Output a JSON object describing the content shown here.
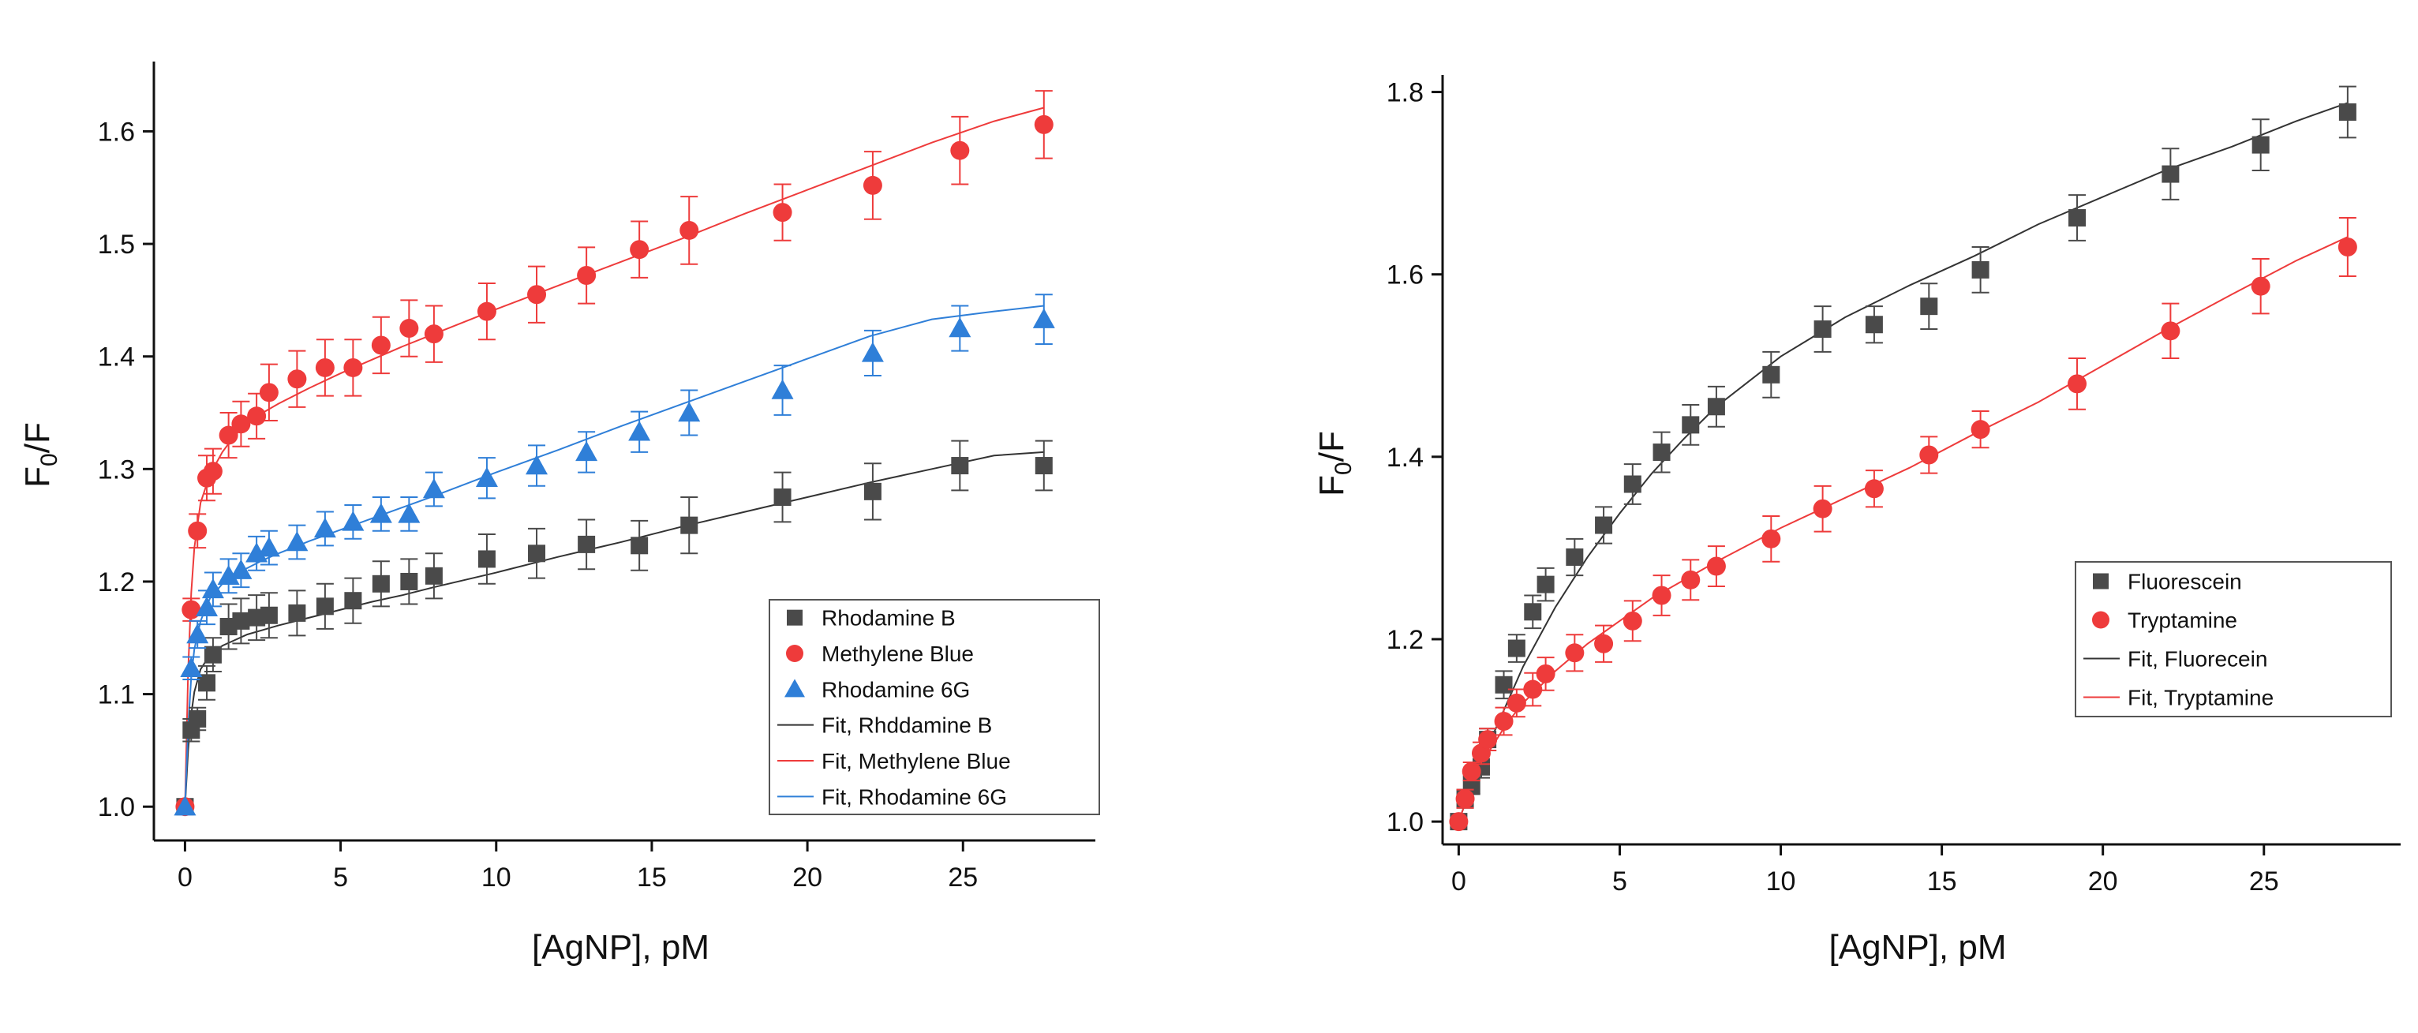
{
  "chart_data": [
    {
      "type": "scatter",
      "xlabel": "[AgNP], pM",
      "ylabel_main": "F",
      "ylabel_sub": "0",
      "ylabel_tail": "/F",
      "xlim": [
        -1,
        29
      ],
      "ylim": [
        0.97,
        1.655
      ],
      "xticks": [
        0,
        5,
        10,
        15,
        20,
        25
      ],
      "yticks": [
        1.0,
        1.1,
        1.2,
        1.3,
        1.4,
        1.5,
        1.6
      ],
      "legend_position": "bottom-right",
      "series": [
        {
          "name": "Rhodamine B",
          "marker": "square",
          "color": "#4a4a4a",
          "x": [
            0,
            0.2,
            0.4,
            0.7,
            0.9,
            1.4,
            1.8,
            2.3,
            2.7,
            3.6,
            4.5,
            5.4,
            6.3,
            7.2,
            8.0,
            9.7,
            11.3,
            12.9,
            14.6,
            16.2,
            19.2,
            22.1,
            24.9,
            27.6
          ],
          "y": [
            1.0,
            1.068,
            1.078,
            1.11,
            1.135,
            1.16,
            1.165,
            1.168,
            1.17,
            1.172,
            1.178,
            1.183,
            1.198,
            1.2,
            1.205,
            1.22,
            1.225,
            1.233,
            1.232,
            1.25,
            1.275,
            1.28,
            1.303,
            1.303
          ],
          "err": [
            0,
            0.01,
            0.01,
            0.015,
            0.015,
            0.02,
            0.02,
            0.02,
            0.02,
            0.02,
            0.02,
            0.02,
            0.02,
            0.02,
            0.02,
            0.022,
            0.022,
            0.022,
            0.022,
            0.025,
            0.022,
            0.025,
            0.022,
            0.022
          ]
        },
        {
          "name": "Methylene Blue",
          "marker": "circle",
          "color": "#ee3b3b",
          "x": [
            0,
            0.2,
            0.4,
            0.7,
            0.9,
            1.4,
            1.8,
            2.3,
            2.7,
            3.6,
            4.5,
            5.4,
            6.3,
            7.2,
            8.0,
            9.7,
            11.3,
            12.9,
            14.6,
            16.2,
            19.2,
            22.1,
            24.9,
            27.6
          ],
          "y": [
            1.0,
            1.175,
            1.245,
            1.292,
            1.298,
            1.33,
            1.34,
            1.347,
            1.368,
            1.38,
            1.39,
            1.39,
            1.41,
            1.425,
            1.42,
            1.44,
            1.455,
            1.472,
            1.495,
            1.512,
            1.528,
            1.552,
            1.583,
            1.606
          ],
          "err": [
            0,
            0.01,
            0.015,
            0.02,
            0.02,
            0.02,
            0.02,
            0.02,
            0.025,
            0.025,
            0.025,
            0.025,
            0.025,
            0.025,
            0.025,
            0.025,
            0.025,
            0.025,
            0.025,
            0.03,
            0.025,
            0.03,
            0.03,
            0.03
          ]
        },
        {
          "name": "Rhodamine 6G",
          "marker": "triangle",
          "color": "#2f7fd8",
          "x": [
            0,
            0.2,
            0.4,
            0.7,
            0.9,
            1.4,
            1.8,
            2.3,
            2.7,
            3.6,
            4.5,
            5.4,
            6.3,
            7.2,
            8.0,
            9.7,
            11.3,
            12.9,
            14.6,
            16.2,
            19.2,
            22.1,
            24.9,
            27.6
          ],
          "y": [
            1.0,
            1.123,
            1.153,
            1.177,
            1.193,
            1.205,
            1.21,
            1.225,
            1.23,
            1.235,
            1.247,
            1.253,
            1.26,
            1.26,
            1.282,
            1.292,
            1.303,
            1.315,
            1.333,
            1.35,
            1.37,
            1.403,
            1.425,
            1.433
          ],
          "err": [
            0,
            0.01,
            0.012,
            0.015,
            0.015,
            0.015,
            0.015,
            0.015,
            0.015,
            0.015,
            0.015,
            0.015,
            0.015,
            0.015,
            0.015,
            0.018,
            0.018,
            0.018,
            0.018,
            0.02,
            0.022,
            0.02,
            0.02,
            0.022
          ]
        },
        {
          "name": "Fit, Rhddamine B",
          "marker": "line",
          "color": "#333333",
          "x": [
            0,
            0.1,
            0.2,
            0.3,
            0.5,
            0.8,
            1.2,
            1.6,
            2,
            2.5,
            3,
            4,
            5,
            6,
            7,
            8,
            10,
            12,
            14,
            16,
            18,
            20,
            22,
            24,
            26,
            27.6
          ],
          "y": [
            1.0,
            1.05,
            1.082,
            1.102,
            1.122,
            1.135,
            1.143,
            1.148,
            1.153,
            1.157,
            1.161,
            1.168,
            1.175,
            1.182,
            1.188,
            1.195,
            1.208,
            1.222,
            1.235,
            1.249,
            1.262,
            1.275,
            1.288,
            1.3,
            1.312,
            1.315
          ]
        },
        {
          "name": "Fit, Methylene Blue",
          "marker": "line",
          "color": "#ee3b3b",
          "x": [
            0,
            0.1,
            0.2,
            0.3,
            0.5,
            0.8,
            1.2,
            1.6,
            2,
            2.5,
            3,
            4,
            5,
            6,
            7,
            8,
            10,
            12,
            14,
            16,
            18,
            20,
            22,
            24,
            26,
            27.6
          ],
          "y": [
            1.0,
            1.12,
            1.19,
            1.23,
            1.27,
            1.295,
            1.315,
            1.33,
            1.34,
            1.35,
            1.358,
            1.372,
            1.385,
            1.397,
            1.409,
            1.42,
            1.442,
            1.463,
            1.484,
            1.505,
            1.527,
            1.548,
            1.569,
            1.59,
            1.609,
            1.621
          ]
        },
        {
          "name": "Fit, Rhodamine 6G",
          "marker": "line",
          "color": "#2f7fd8",
          "x": [
            0,
            0.1,
            0.2,
            0.3,
            0.5,
            0.8,
            1.2,
            1.6,
            2,
            2.5,
            3,
            4,
            5,
            6,
            7,
            8,
            10,
            12,
            14,
            16,
            18,
            20,
            22,
            24,
            26,
            27.6
          ],
          "y": [
            1.0,
            1.07,
            1.115,
            1.14,
            1.165,
            1.185,
            1.198,
            1.206,
            1.212,
            1.219,
            1.225,
            1.236,
            1.246,
            1.256,
            1.266,
            1.276,
            1.297,
            1.317,
            1.338,
            1.358,
            1.378,
            1.398,
            1.418,
            1.433,
            1.44,
            1.445
          ]
        }
      ]
    },
    {
      "type": "scatter",
      "xlabel": "[AgNP], pM",
      "ylabel_main": "F",
      "ylabel_sub": "0",
      "ylabel_tail": "/F",
      "xlim": [
        -0.5,
        29
      ],
      "ylim": [
        0.975,
        1.81
      ],
      "xticks": [
        0,
        5,
        10,
        15,
        20,
        25
      ],
      "yticks": [
        1.0,
        1.2,
        1.4,
        1.6,
        1.8
      ],
      "legend_position": "bottom-right",
      "series": [
        {
          "name": "Fluorescein",
          "marker": "square",
          "color": "#4a4a4a",
          "x": [
            0,
            0.2,
            0.4,
            0.7,
            0.9,
            1.4,
            1.8,
            2.3,
            2.7,
            3.6,
            4.5,
            5.4,
            6.3,
            7.2,
            8.0,
            9.7,
            11.3,
            12.9,
            14.6,
            16.2,
            19.2,
            22.1,
            24.9,
            27.6
          ],
          "y": [
            1.0,
            1.025,
            1.04,
            1.06,
            1.09,
            1.15,
            1.19,
            1.23,
            1.26,
            1.29,
            1.325,
            1.37,
            1.405,
            1.435,
            1.455,
            1.49,
            1.54,
            1.545,
            1.565,
            1.605,
            1.662,
            1.71,
            1.742,
            1.778
          ],
          "err": [
            0,
            0.01,
            0.01,
            0.012,
            0.012,
            0.015,
            0.015,
            0.018,
            0.018,
            0.02,
            0.02,
            0.022,
            0.022,
            0.022,
            0.022,
            0.025,
            0.025,
            0.02,
            0.025,
            0.025,
            0.025,
            0.028,
            0.028,
            0.028
          ]
        },
        {
          "name": "Tryptamine",
          "marker": "circle",
          "color": "#ee3b3b",
          "x": [
            0,
            0.2,
            0.4,
            0.7,
            0.9,
            1.4,
            1.8,
            2.3,
            2.7,
            3.6,
            4.5,
            5.4,
            6.3,
            7.2,
            8.0,
            9.7,
            11.3,
            12.9,
            14.6,
            16.2,
            19.2,
            22.1,
            24.9,
            27.6
          ],
          "y": [
            1.0,
            1.025,
            1.055,
            1.075,
            1.09,
            1.11,
            1.13,
            1.145,
            1.162,
            1.185,
            1.195,
            1.22,
            1.248,
            1.265,
            1.28,
            1.31,
            1.343,
            1.365,
            1.402,
            1.43,
            1.48,
            1.538,
            1.587,
            1.63
          ],
          "err": [
            0,
            0.01,
            0.01,
            0.012,
            0.012,
            0.015,
            0.015,
            0.018,
            0.018,
            0.02,
            0.02,
            0.022,
            0.022,
            0.022,
            0.022,
            0.025,
            0.025,
            0.02,
            0.02,
            0.02,
            0.028,
            0.03,
            0.03,
            0.032
          ]
        },
        {
          "name": "Fit, Fluorecein",
          "marker": "line",
          "color": "#333333",
          "x": [
            0,
            0.3,
            0.6,
            1,
            1.5,
            2,
            3,
            4,
            5,
            6,
            7,
            8,
            10,
            12,
            14,
            16,
            18,
            20,
            22,
            24,
            26,
            27.6
          ],
          "y": [
            1.0,
            1.03,
            1.055,
            1.09,
            1.13,
            1.17,
            1.235,
            1.29,
            1.338,
            1.382,
            1.42,
            1.455,
            1.51,
            1.553,
            1.588,
            1.62,
            1.655,
            1.685,
            1.715,
            1.74,
            1.768,
            1.788
          ]
        },
        {
          "name": "Fit, Tryptamine",
          "marker": "line",
          "color": "#ee3b3b",
          "x": [
            0,
            0.3,
            0.6,
            1,
            1.5,
            2,
            3,
            4,
            5,
            6,
            7,
            8,
            10,
            12,
            14,
            16,
            18,
            20,
            22,
            24,
            26,
            27.6
          ],
          "y": [
            1.0,
            1.03,
            1.055,
            1.08,
            1.108,
            1.13,
            1.165,
            1.195,
            1.22,
            1.245,
            1.265,
            1.285,
            1.322,
            1.355,
            1.388,
            1.425,
            1.46,
            1.5,
            1.54,
            1.578,
            1.615,
            1.641
          ]
        }
      ]
    }
  ]
}
